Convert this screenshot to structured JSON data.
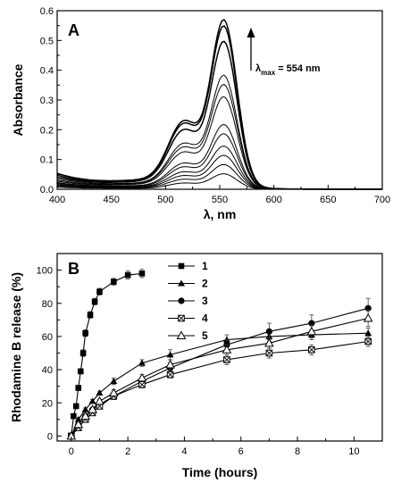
{
  "chart_data": [
    {
      "panel": "A",
      "type": "line",
      "xlabel": "λ, nm",
      "ylabel": "Absorbance",
      "xlim": [
        400,
        700
      ],
      "ylim": [
        0,
        0.6
      ],
      "xticks": [
        400,
        450,
        500,
        550,
        600,
        650,
        700
      ],
      "yticks": [
        0.0,
        0.1,
        0.2,
        0.3,
        0.4,
        0.5,
        0.6
      ],
      "annotation": {
        "symbol": "λ",
        "subscript": "max",
        "text": " = 554 nm",
        "arrow": "up"
      },
      "peak_wavelength": 554,
      "shoulder_wavelength": 517,
      "series": [
        {
          "peak": 0.55,
          "baseline": 0.052
        },
        {
          "peak": 0.53,
          "baseline": 0.046
        },
        {
          "peak": 0.48,
          "baseline": 0.04
        },
        {
          "peak": 0.37,
          "baseline": 0.035
        },
        {
          "peak": 0.34,
          "baseline": 0.03
        },
        {
          "peak": 0.3,
          "baseline": 0.026
        },
        {
          "peak": 0.21,
          "baseline": 0.022
        },
        {
          "peak": 0.18,
          "baseline": 0.019
        },
        {
          "peak": 0.14,
          "baseline": 0.016
        },
        {
          "peak": 0.11,
          "baseline": 0.013
        },
        {
          "peak": 0.08,
          "baseline": 0.01
        },
        {
          "peak": 0.05,
          "baseline": 0.007
        }
      ]
    },
    {
      "panel": "B",
      "type": "line",
      "xlabel": "Time (hours)",
      "ylabel": "Rhodamine B release (%)",
      "xlim": [
        -0.5,
        11
      ],
      "ylim": [
        -3,
        110
      ],
      "xticks": [
        0,
        2,
        4,
        6,
        8,
        10
      ],
      "yticks": [
        0,
        20,
        40,
        60,
        80,
        100
      ],
      "legend_position": "top-center",
      "series": [
        {
          "name": "1",
          "marker": "square-filled",
          "x": [
            0,
            0.08,
            0.17,
            0.25,
            0.33,
            0.42,
            0.5,
            0.67,
            0.83,
            1,
            1.5,
            2,
            2.5
          ],
          "y": [
            0,
            12,
            18,
            29,
            39,
            50,
            62,
            73,
            81,
            87,
            93,
            97,
            98
          ],
          "err": [
            0,
            1,
            1,
            1.5,
            1.5,
            2,
            2,
            2,
            2,
            2,
            2,
            2.5,
            2.5
          ]
        },
        {
          "name": "2",
          "marker": "triangle-filled",
          "x": [
            0,
            0.25,
            0.5,
            0.75,
            1,
            1.5,
            2.5,
            3.5,
            5.5,
            7,
            8.5,
            10.5
          ],
          "y": [
            0,
            10,
            16,
            21,
            26,
            33,
            44,
            49,
            58,
            60,
            61,
            62
          ],
          "err": [
            0,
            1,
            1,
            1,
            1,
            2,
            2,
            3,
            3,
            3,
            3,
            3
          ]
        },
        {
          "name": "3",
          "marker": "circle-filled",
          "x": [
            0,
            0.25,
            0.5,
            0.75,
            1,
            1.5,
            2.5,
            3.5,
            5.5,
            7,
            8.5,
            10.5
          ],
          "y": [
            0,
            7,
            12,
            16,
            19,
            24,
            33,
            41,
            55,
            63,
            68,
            77
          ],
          "err": [
            0,
            1,
            1,
            1,
            1,
            2,
            2,
            3,
            3,
            5,
            5,
            6
          ]
        },
        {
          "name": "4",
          "marker": "square-crossed",
          "x": [
            0,
            0.25,
            0.5,
            0.75,
            1,
            1.5,
            2.5,
            3.5,
            5.5,
            7,
            8.5,
            10.5
          ],
          "y": [
            0,
            5,
            10,
            14,
            18,
            24,
            31,
            37,
            46,
            50,
            52,
            57
          ],
          "err": [
            0,
            1,
            1,
            1,
            1,
            2,
            2,
            2,
            3,
            3,
            3,
            3
          ]
        },
        {
          "name": "5",
          "marker": "triangle-open",
          "x": [
            0,
            0.25,
            0.5,
            0.75,
            1,
            1.5,
            2.5,
            3.5,
            5.5,
            7,
            8.5,
            10.5
          ],
          "y": [
            0,
            7,
            12,
            16,
            21,
            26,
            35,
            43,
            52,
            56,
            63,
            71
          ],
          "err": [
            0,
            1,
            1,
            1,
            1,
            2,
            2,
            3,
            3,
            3,
            4,
            5
          ]
        }
      ]
    }
  ]
}
